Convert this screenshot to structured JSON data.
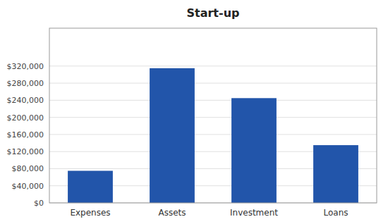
{
  "chart_data": {
    "type": "bar",
    "title": "Start-up",
    "categories": [
      "Expenses",
      "Assets",
      "Investment",
      "Loans"
    ],
    "values": [
      75000,
      315000,
      245000,
      135000
    ],
    "color": "#2255AA",
    "ylim": [
      0,
      408600
    ],
    "yticks": [
      {
        "value": 0,
        "label": "$0"
      },
      {
        "value": 40000,
        "label": "$40,000"
      },
      {
        "value": 80000,
        "label": "$80,000"
      },
      {
        "value": 120000,
        "label": "$120,000"
      },
      {
        "value": 160000,
        "label": "$160,000"
      },
      {
        "value": 200000,
        "label": "$200,000"
      },
      {
        "value": 240000,
        "label": "$240,000"
      },
      {
        "value": 280000,
        "label": "$280,000"
      },
      {
        "value": 320000,
        "label": "$320,000"
      }
    ],
    "grid": true
  }
}
